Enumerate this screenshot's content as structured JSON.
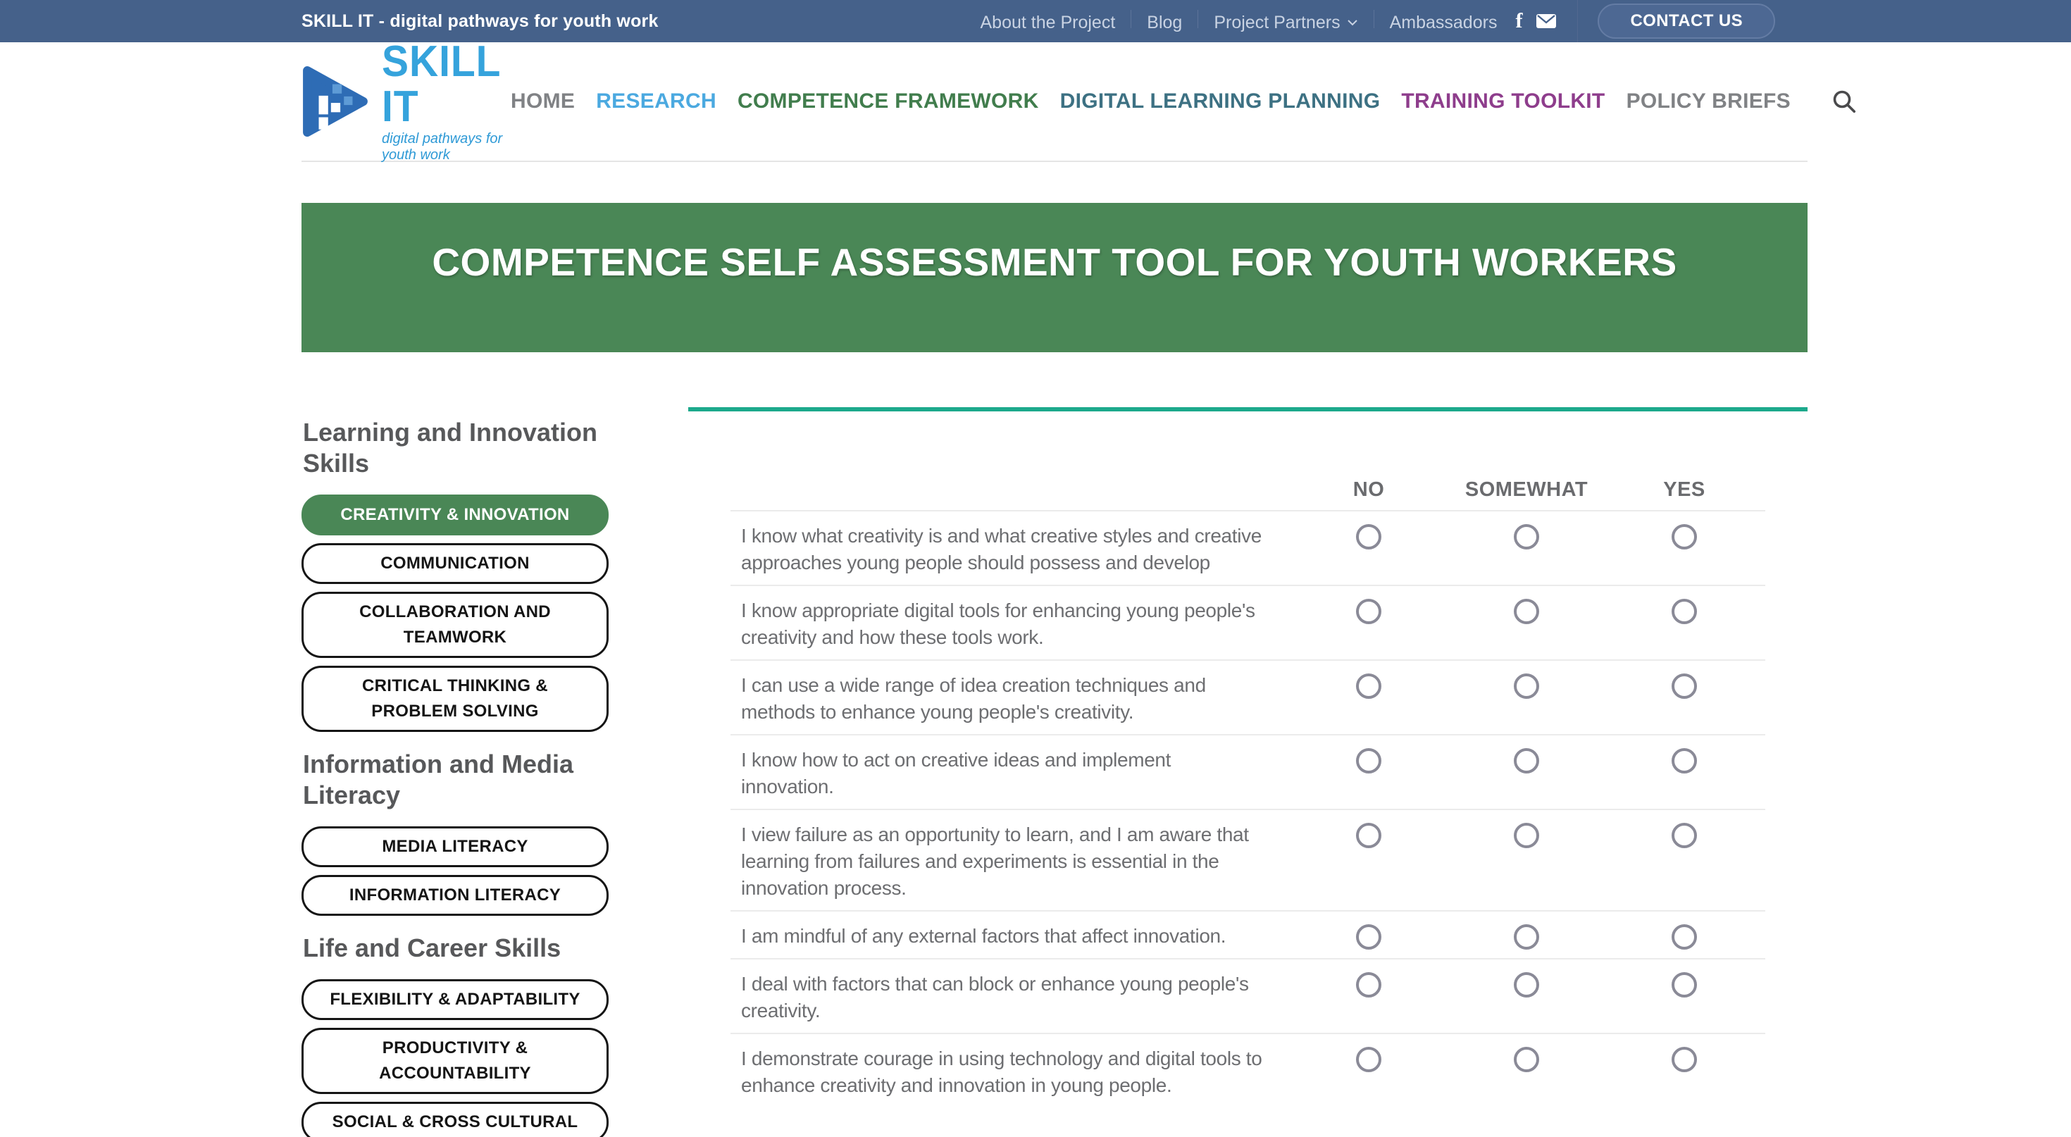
{
  "topbar": {
    "brand": "SKILL IT - digital pathways for youth work",
    "links": [
      {
        "label": "About the Project",
        "dropdown": false
      },
      {
        "label": "Blog",
        "dropdown": false
      },
      {
        "label": "Project Partners",
        "dropdown": true
      },
      {
        "label": "Ambassadors",
        "dropdown": false
      }
    ],
    "icons": [
      "facebook-icon",
      "mail-icon"
    ],
    "contact_label": "CONTACT US"
  },
  "logo": {
    "title": "SKILL IT",
    "tagline": "digital pathways for youth work"
  },
  "nav": {
    "items": [
      {
        "label": "HOME",
        "color": "#808285",
        "active": false
      },
      {
        "label": "RESEARCH",
        "color": "#4BA9E0",
        "active": true
      },
      {
        "label": "COMPETENCE FRAMEWORK",
        "color": "#417D4D",
        "active": false
      },
      {
        "label": "DIGITAL LEARNING PLANNING",
        "color": "#3D7183",
        "active": false
      },
      {
        "label": "TRAINING TOOLKIT",
        "color": "#8E3D8C",
        "active": false
      },
      {
        "label": "POLICY BRIEFS",
        "color": "#808285",
        "active": false
      }
    ]
  },
  "banner": {
    "title": "COMPETENCE SELF ASSESSMENT TOOL FOR YOUTH WORKERS"
  },
  "sidebar": {
    "sections": [
      {
        "heading": "Learning and Innovation Skills",
        "items": [
          {
            "label": "CREATIVITY & INNOVATION",
            "active": true
          },
          {
            "label": "COMMUNICATION",
            "active": false
          },
          {
            "label": "COLLABORATION AND TEAMWORK",
            "active": false
          },
          {
            "label": "CRITICAL THINKING & PROBLEM SOLVING",
            "active": false
          }
        ]
      },
      {
        "heading": "Information and Media Literacy",
        "items": [
          {
            "label": "MEDIA LITERACY",
            "active": false
          },
          {
            "label": "INFORMATION LITERACY",
            "active": false
          }
        ]
      },
      {
        "heading": "Life and Career Skills",
        "items": [
          {
            "label": "FLEXIBILITY & ADAPTABILITY",
            "active": false
          },
          {
            "label": "PRODUCTIVITY & ACCOUNTABILITY",
            "active": false
          },
          {
            "label": "SOCIAL & CROSS CULTURAL",
            "active": false
          }
        ]
      }
    ]
  },
  "assessment": {
    "options": [
      "NO",
      "SOMEWHAT",
      "YES"
    ],
    "questions": [
      {
        "text": "I know what creativity is and what creative styles and creative approaches young people should possess and develop",
        "selected": null
      },
      {
        "text": "I know appropriate digital tools for enhancing young people's creativity and how these tools work.",
        "selected": null
      },
      {
        "text": "I can use a wide range of idea creation techniques and methods to enhance young people's creativity.",
        "selected": null
      },
      {
        "text": "I know how to act on creative ideas and implement innovation.",
        "selected": null
      },
      {
        "text": "I view failure as an opportunity to learn, and I am aware that learning from failures and experiments is essential in the innovation process.",
        "selected": null
      },
      {
        "text": "I am mindful of any external factors that affect innovation.",
        "selected": null
      },
      {
        "text": "I deal with factors that can block or enhance young people's creativity.",
        "selected": null
      },
      {
        "text": "I demonstrate courage in using technology and digital tools to enhance creativity and innovation in young people.",
        "selected": null
      }
    ]
  },
  "colors": {
    "topbar_bg": "#45618A",
    "green": "#4A8756",
    "teal_rule": "#1CA98C",
    "question_text": "#6D6E71",
    "heading_gray": "#57585A",
    "radio_border": "#8A8A97",
    "logo_triangle_blue": "#2E6CB5",
    "logo_text_blue": "#35A3DC"
  }
}
